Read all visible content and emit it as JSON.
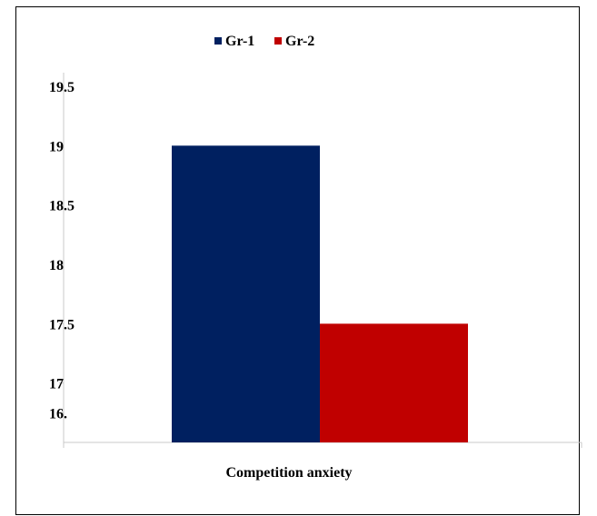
{
  "chart_data": {
    "type": "bar",
    "title": "",
    "xlabel": "",
    "ylabel": "",
    "categories": [
      "Competition anxiety"
    ],
    "series": [
      {
        "name": "Gr-1",
        "values": [
          19.0
        ],
        "color": "#002060"
      },
      {
        "name": "Gr-2",
        "values": [
          17.5
        ],
        "color": "#C00000"
      }
    ],
    "ylim": [
      16.5,
      19.5
    ],
    "y_ticks": [
      {
        "value": 19.5,
        "label": "19.5"
      },
      {
        "value": 19,
        "label": "19"
      },
      {
        "value": 18.5,
        "label": "18.5"
      },
      {
        "value": 18,
        "label": "18"
      },
      {
        "value": 17.5,
        "label": "17.5"
      },
      {
        "value": 17,
        "label": "17"
      },
      {
        "value": 16.75,
        "label": "16."
      }
    ],
    "grid": false,
    "legend_position": "top"
  }
}
